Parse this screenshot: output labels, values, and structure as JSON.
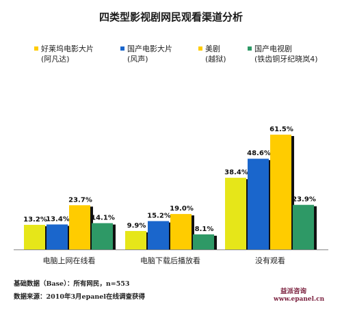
{
  "title": "四类型影视剧网民观看渠道分析",
  "legend": [
    {
      "line1": "好莱坞电影大片",
      "line2": "(阿凡达)",
      "color": "#ffcc00"
    },
    {
      "line1": "国产电影大片",
      "line2": "(风声)",
      "color": "#1a66cc"
    },
    {
      "line1": "美剧",
      "line2": "(越狱)",
      "color": "#ffcc00"
    },
    {
      "line1": "国产电视剧",
      "line2": "(铁齿铜牙纪晓岚4)",
      "color": "#2e9966"
    }
  ],
  "chart_data": {
    "type": "bar",
    "categories": [
      "电脑上网在线看",
      "电脑下载后播放看",
      "没有观看"
    ],
    "series": [
      {
        "name": "好莱坞电影大片(阿凡达)",
        "values": [
          13.2,
          9.9,
          38.4
        ],
        "labels": [
          "13.2%",
          "9.9%",
          "38.4%"
        ],
        "color": "#e6e619"
      },
      {
        "name": "国产电影大片(风声)",
        "values": [
          13.4,
          15.2,
          48.6
        ],
        "labels": [
          "13.4%",
          "15.2%",
          "48.6%"
        ],
        "color": "#1a66cc"
      },
      {
        "name": "美剧(越狱)",
        "values": [
          23.7,
          19.0,
          61.5
        ],
        "labels": [
          "23.7%",
          "19.0%",
          "61.5%"
        ],
        "color": "#ffcc00"
      },
      {
        "name": "国产电视剧(铁齿铜牙纪晓岚4)",
        "values": [
          14.1,
          8.1,
          23.9
        ],
        "labels": [
          "14.1%",
          "8.1%",
          "23.9%"
        ],
        "color": "#2e9966"
      }
    ],
    "ylim": [
      0,
      65
    ],
    "grid": false,
    "legend_position": "top"
  },
  "footer": {
    "base_note": "基础数据（Base）：所有网民，n=553",
    "source_note": "数据来源：2010年3月epanel在线调查获得",
    "brand_name": "益派咨询",
    "brand_url": "www.epanel.cn"
  }
}
